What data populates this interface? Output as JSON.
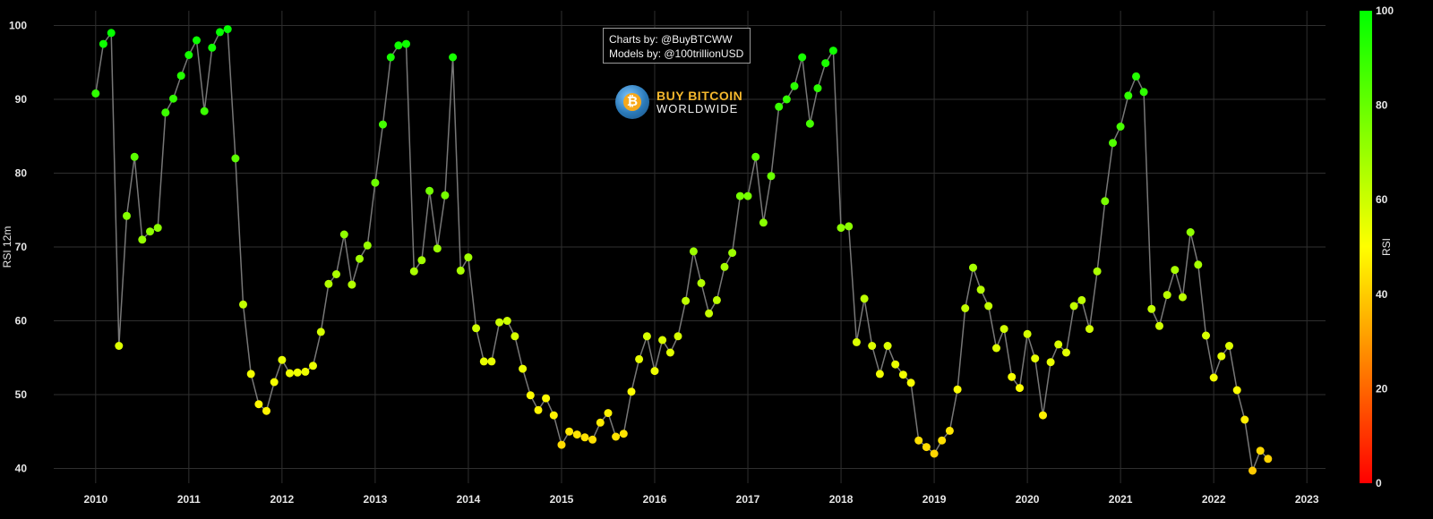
{
  "credits": {
    "line1": "Charts by: @BuyBTCWW",
    "line2": "Models by: @100trillionUSD"
  },
  "logo": {
    "line1": "BUY BITCOIN",
    "line2": "WORLDWIDE",
    "symbol": "₿",
    "icon": "bitcoin-globe-icon"
  },
  "chart_data": {
    "type": "scatter",
    "ylabel": "RSI 12m",
    "colorbar_label": "RSI",
    "ylim": [
      38,
      102
    ],
    "yticks": [
      40,
      50,
      60,
      70,
      80,
      90,
      100
    ],
    "xlim": [
      2009.55,
      2023.2
    ],
    "xticks": [
      2010,
      2011,
      2012,
      2013,
      2014,
      2015,
      2016,
      2017,
      2018,
      2019,
      2020,
      2021,
      2022,
      2023
    ],
    "colorbar_ticks": [
      0,
      20,
      40,
      60,
      80,
      100
    ],
    "colorbar_range": [
      0,
      100
    ],
    "colorscale": [
      "#ff0000",
      "#ffff00",
      "#00ff00"
    ],
    "connect_points": true,
    "line_color": "#777777",
    "grid": true,
    "x": [
      2010.0,
      2010.083,
      2010.167,
      2010.25,
      2010.333,
      2010.417,
      2010.5,
      2010.583,
      2010.667,
      2010.75,
      2010.833,
      2010.917,
      2011.0,
      2011.083,
      2011.167,
      2011.25,
      2011.333,
      2011.417,
      2011.5,
      2011.583,
      2011.667,
      2011.75,
      2011.833,
      2011.917,
      2012.0,
      2012.083,
      2012.167,
      2012.25,
      2012.333,
      2012.417,
      2012.5,
      2012.583,
      2012.667,
      2012.75,
      2012.833,
      2012.917,
      2013.0,
      2013.083,
      2013.167,
      2013.25,
      2013.333,
      2013.417,
      2013.5,
      2013.583,
      2013.667,
      2013.75,
      2013.833,
      2013.917,
      2014.0,
      2014.083,
      2014.167,
      2014.25,
      2014.333,
      2014.417,
      2014.5,
      2014.583,
      2014.667,
      2014.75,
      2014.833,
      2014.917,
      2015.0,
      2015.083,
      2015.167,
      2015.25,
      2015.333,
      2015.417,
      2015.5,
      2015.583,
      2015.667,
      2015.75,
      2015.833,
      2015.917,
      2016.0,
      2016.083,
      2016.167,
      2016.25,
      2016.333,
      2016.417,
      2016.5,
      2016.583,
      2016.667,
      2016.75,
      2016.833,
      2016.917,
      2017.0,
      2017.083,
      2017.167,
      2017.25,
      2017.333,
      2017.417,
      2017.5,
      2017.583,
      2017.667,
      2017.75,
      2017.833,
      2017.917,
      2018.0,
      2018.083,
      2018.167,
      2018.25,
      2018.333,
      2018.417,
      2018.5,
      2018.583,
      2018.667,
      2018.75,
      2018.833,
      2018.917,
      2019.0,
      2019.083,
      2019.167,
      2019.25,
      2019.333,
      2019.417,
      2019.5,
      2019.583,
      2019.667,
      2019.75,
      2019.833,
      2019.917,
      2020.0,
      2020.083,
      2020.167,
      2020.25,
      2020.333,
      2020.417,
      2020.5,
      2020.583,
      2020.667,
      2020.75,
      2020.833,
      2020.917,
      2021.0,
      2021.083,
      2021.167,
      2021.25,
      2021.333,
      2021.417,
      2021.5,
      2021.583,
      2021.667,
      2021.75,
      2021.833,
      2021.917,
      2022.0,
      2022.083,
      2022.167,
      2022.25,
      2022.333,
      2022.417,
      2022.5,
      2022.583
    ],
    "y": [
      90.8,
      97.5,
      99.0,
      56.6,
      74.2,
      82.2,
      71.0,
      72.1,
      72.6,
      88.2,
      90.1,
      93.2,
      96.0,
      98.0,
      88.4,
      97.0,
      99.1,
      99.5,
      82.0,
      62.2,
      52.8,
      48.7,
      47.8,
      51.7,
      54.7,
      52.9,
      53.0,
      53.1,
      53.9,
      58.5,
      65.0,
      66.3,
      71.7,
      64.9,
      68.4,
      70.2,
      78.7,
      86.6,
      95.7,
      97.3,
      97.5,
      66.7,
      68.2,
      77.6,
      69.8,
      77.0,
      95.7,
      66.8,
      68.6,
      59.0,
      54.5,
      54.5,
      59.8,
      60.0,
      57.9,
      53.5,
      49.9,
      47.9,
      49.5,
      47.2,
      43.2,
      45.0,
      44.6,
      44.2,
      43.9,
      46.2,
      47.5,
      44.3,
      44.7,
      50.4,
      54.8,
      57.9,
      53.2,
      57.4,
      55.7,
      57.9,
      62.7,
      69.4,
      65.1,
      61.0,
      62.8,
      67.3,
      69.2,
      76.9,
      76.9,
      82.2,
      73.3,
      79.6,
      89.0,
      90.0,
      91.8,
      95.7,
      86.7,
      91.5,
      94.9,
      96.6,
      72.6,
      72.8,
      57.1,
      63.0,
      56.6,
      52.8,
      56.6,
      54.1,
      52.7,
      51.6,
      43.8,
      42.9,
      42.0,
      43.8,
      45.1,
      50.7,
      61.7,
      67.2,
      64.2,
      62.0,
      56.3,
      58.9,
      52.4,
      50.9,
      58.2,
      54.9,
      47.2,
      54.4,
      56.8,
      55.7,
      62.0,
      62.8,
      58.9,
      66.7,
      76.2,
      84.1,
      86.3,
      90.5,
      93.1,
      91.0,
      61.6,
      59.3,
      63.5,
      66.9,
      63.2,
      72.0,
      67.6,
      58.0,
      52.3,
      55.2,
      56.6,
      50.6,
      46.6,
      39.7,
      42.4,
      41.3
    ]
  }
}
